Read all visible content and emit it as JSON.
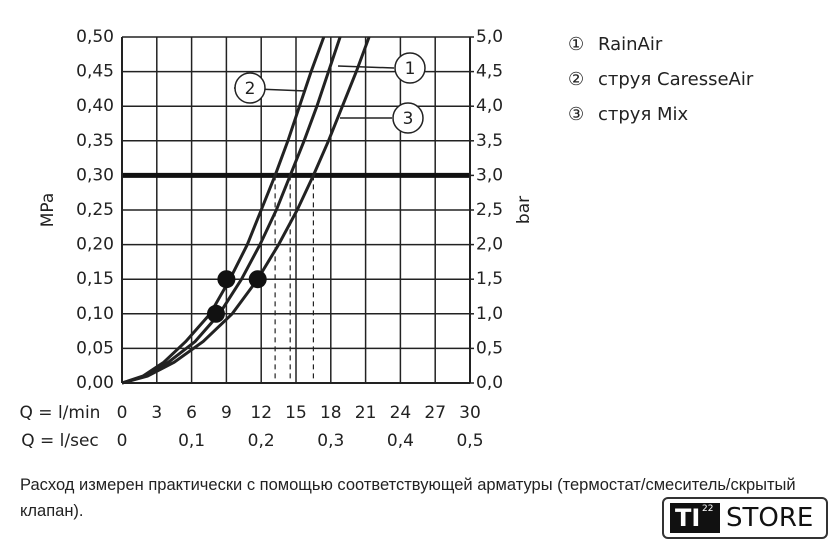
{
  "chart_data": {
    "type": "line",
    "xlabel": "Q = l/min",
    "x2label": "Q = l/sec",
    "ylabel": "MPa",
    "y2label": "bar",
    "xlim": [
      0,
      30
    ],
    "xticks": [
      0,
      3,
      6,
      9,
      12,
      15,
      18,
      21,
      24,
      27,
      30
    ],
    "x2lim": [
      0,
      0.5
    ],
    "x2ticks": [
      0,
      {
        "value": 0.1,
        "label": "0,1"
      },
      {
        "value": 0.2,
        "label": "0,2"
      },
      {
        "value": 0.3,
        "label": "0,3"
      },
      {
        "value": 0.4,
        "label": "0,4"
      },
      {
        "value": 0.5,
        "label": "0,5"
      }
    ],
    "ylim": [
      0,
      0.5
    ],
    "yticks": [
      {
        "value": 0,
        "label": "0,00"
      },
      {
        "value": 0.05,
        "label": "0,05"
      },
      {
        "value": 0.1,
        "label": "0,10"
      },
      {
        "value": 0.15,
        "label": "0,15"
      },
      {
        "value": 0.2,
        "label": "0,20"
      },
      {
        "value": 0.25,
        "label": "0,25"
      },
      {
        "value": 0.3,
        "label": "0,30"
      },
      {
        "value": 0.35,
        "label": "0,35"
      },
      {
        "value": 0.4,
        "label": "0,40"
      },
      {
        "value": 0.45,
        "label": "0,45"
      },
      {
        "value": 0.5,
        "label": "0,50"
      }
    ],
    "y2lim": [
      0,
      5
    ],
    "y2ticks": [
      {
        "value": 0,
        "label": "0,0"
      },
      {
        "value": 0.5,
        "label": "0,5"
      },
      {
        "value": 1,
        "label": "1,0"
      },
      {
        "value": 1.5,
        "label": "1,5"
      },
      {
        "value": 2,
        "label": "2,0"
      },
      {
        "value": 2.5,
        "label": "2,5"
      },
      {
        "value": 3,
        "label": "3,0"
      },
      {
        "value": 3.5,
        "label": "3,5"
      },
      {
        "value": 4,
        "label": "4,0"
      },
      {
        "value": 4.5,
        "label": "4,5"
      },
      {
        "value": 5,
        "label": "5,0"
      }
    ],
    "grid": true,
    "reference_line": 0.3,
    "dashed_x": [
      13.2,
      14.5,
      16.5
    ],
    "points": [
      {
        "x": 9,
        "y": 0.15
      },
      {
        "x": 8.1,
        "y": 0.1
      },
      {
        "x": 11.7,
        "y": 0.15
      }
    ],
    "series": [
      {
        "name": "RainAir",
        "symbol": "①",
        "callout": "1",
        "color": "#222222",
        "x": [
          0,
          2.0,
          4.0,
          6.3,
          8.4,
          10.3,
          11.9,
          13.3,
          14.5,
          15.7,
          16.8,
          17.8,
          18.8
        ],
        "values": [
          0,
          0.01,
          0.03,
          0.06,
          0.1,
          0.15,
          0.2,
          0.25,
          0.3,
          0.35,
          0.4,
          0.45,
          0.5
        ]
      },
      {
        "name": "струя CaresseAir",
        "symbol": "②",
        "callout": "2",
        "color": "#222222",
        "x": [
          0,
          1.8,
          3.6,
          5.5,
          7.6,
          9.3,
          10.8,
          12.0,
          13.2,
          14.3,
          15.3,
          16.3,
          17.4
        ],
        "values": [
          0,
          0.01,
          0.03,
          0.06,
          0.1,
          0.15,
          0.2,
          0.25,
          0.3,
          0.35,
          0.4,
          0.45,
          0.5
        ]
      },
      {
        "name": "струя Mix",
        "symbol": "③",
        "callout": "3",
        "color": "#222222",
        "x": [
          0,
          2.2,
          4.5,
          7.0,
          9.5,
          11.7,
          13.5,
          15.1,
          16.5,
          17.8,
          19.0,
          20.2,
          21.3
        ],
        "values": [
          0,
          0.01,
          0.03,
          0.06,
          0.1,
          0.15,
          0.2,
          0.25,
          0.3,
          0.35,
          0.4,
          0.45,
          0.5
        ]
      }
    ]
  },
  "footnote": "Расход измерен практически с помощью соответствующей арматуры (термостат/смеситель/скрытый клапан).",
  "logo": {
    "mark": "TI",
    "superscript": "22",
    "text": "STORE"
  }
}
